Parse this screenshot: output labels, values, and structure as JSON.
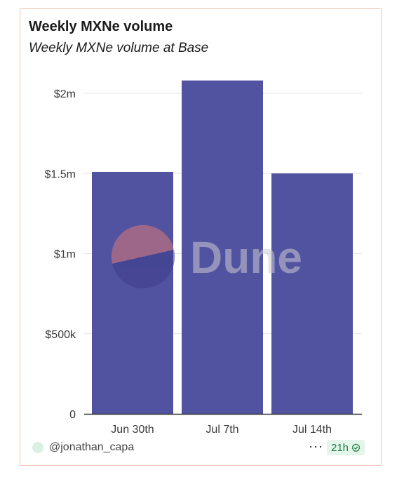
{
  "card": {
    "title": "Weekly MXNe volume",
    "subtitle": "Weekly MXNe volume at Base"
  },
  "chart_data": {
    "type": "bar",
    "title": "Weekly MXNe volume",
    "subtitle": "Weekly MXNe volume at Base",
    "categories": [
      "Jun 30th",
      "Jul 7th",
      "Jul 14th"
    ],
    "values": [
      1510000,
      2080000,
      1500000
    ],
    "ylim": [
      0,
      2200000
    ],
    "yticks": [
      0,
      500000,
      1000000,
      1500000,
      2000000
    ],
    "ytick_labels": [
      "0",
      "$500k",
      "$1m",
      "$1.5m",
      "$2m"
    ],
    "xlabel": "",
    "ylabel": "",
    "grid": true,
    "bar_color": "#5253a0"
  },
  "watermark": {
    "text": "Dune",
    "text_color": "#c9c9d2",
    "logo_top_color": "#d97878",
    "logo_bottom_color": "#3c3d8a"
  },
  "footer": {
    "username": "@jonathan_capa",
    "more_label": "···",
    "refresh_age": "21h",
    "badge_color": "#1f7a45",
    "badge_icon": "check-circle-icon"
  }
}
